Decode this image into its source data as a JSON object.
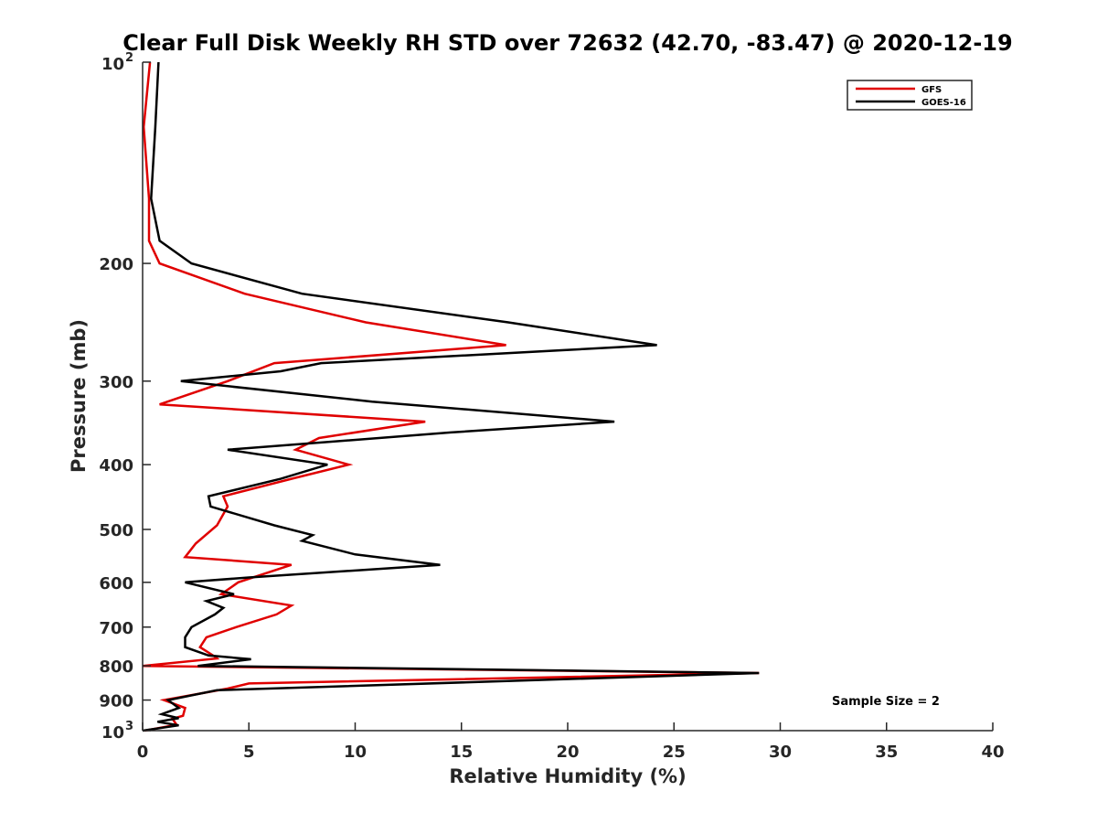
{
  "chart_data": {
    "type": "line",
    "title": "Clear Full Disk Weekly RH STD over 72632 (42.70, -83.47) @ 2020-12-19",
    "xlabel": "Relative Humidity (%)",
    "ylabel": "Pressure (mb)",
    "xlim": [
      0,
      40
    ],
    "ylim": [
      100,
      1000
    ],
    "yscale": "log",
    "y_reversed": true,
    "grid": false,
    "x_ticks": [
      0,
      5,
      10,
      15,
      20,
      25,
      30,
      35,
      40
    ],
    "x_tick_labels": [
      "0",
      "5",
      "10",
      "15",
      "20",
      "25",
      "30",
      "35",
      "40"
    ],
    "y_ticks": [
      100,
      200,
      300,
      400,
      500,
      600,
      700,
      800,
      900,
      1000
    ],
    "y_tick_labels": [
      {
        "base": "10",
        "exp": "2"
      },
      {
        "base": "200",
        "exp": ""
      },
      {
        "base": "300",
        "exp": ""
      },
      {
        "base": "400",
        "exp": ""
      },
      {
        "base": "500",
        "exp": ""
      },
      {
        "base": "600",
        "exp": ""
      },
      {
        "base": "700",
        "exp": ""
      },
      {
        "base": "800",
        "exp": ""
      },
      {
        "base": "900",
        "exp": ""
      },
      {
        "base": "10",
        "exp": "3"
      }
    ],
    "legend_position": "top-right",
    "annotation": "Sample Size = 2",
    "series": [
      {
        "name": "GFS",
        "color": "#e00000",
        "points": [
          [
            0.35,
            100
          ],
          [
            0.05,
            125
          ],
          [
            0.3,
            160
          ],
          [
            0.3,
            185
          ],
          [
            0.8,
            200
          ],
          [
            4.8,
            222
          ],
          [
            10.5,
            245
          ],
          [
            17.1,
            265
          ],
          [
            6.2,
            282
          ],
          [
            4.0,
            300
          ],
          [
            0.8,
            325
          ],
          [
            13.3,
            345
          ],
          [
            8.3,
            365
          ],
          [
            7.2,
            380
          ],
          [
            9.7,
            400
          ],
          [
            7.0,
            420
          ],
          [
            3.8,
            446
          ],
          [
            4.0,
            462
          ],
          [
            3.5,
            493
          ],
          [
            2.5,
            525
          ],
          [
            2.0,
            550
          ],
          [
            7.0,
            565
          ],
          [
            4.5,
            600
          ],
          [
            3.7,
            625
          ],
          [
            7.0,
            650
          ],
          [
            6.3,
            670
          ],
          [
            4.4,
            700
          ],
          [
            3.0,
            725
          ],
          [
            2.7,
            750
          ],
          [
            3.4,
            775
          ],
          [
            3.5,
            780
          ],
          [
            0.0,
            800
          ],
          [
            29.0,
            820
          ],
          [
            5.0,
            850
          ],
          [
            4.0,
            865
          ],
          [
            1.0,
            900
          ],
          [
            2.0,
            925
          ],
          [
            1.9,
            950
          ],
          [
            1.4,
            960
          ],
          [
            1.6,
            980
          ],
          [
            0.1,
            1000
          ]
        ]
      },
      {
        "name": "GOES-16",
        "color": "#000000",
        "points": [
          [
            0.75,
            100
          ],
          [
            0.6,
            125
          ],
          [
            0.4,
            160
          ],
          [
            0.8,
            185
          ],
          [
            2.3,
            200
          ],
          [
            7.5,
            222
          ],
          [
            17.2,
            245
          ],
          [
            24.2,
            265
          ],
          [
            8.4,
            282
          ],
          [
            6.5,
            290
          ],
          [
            1.8,
            300
          ],
          [
            10.8,
            322
          ],
          [
            22.2,
            345
          ],
          [
            14.5,
            358
          ],
          [
            4.0,
            380
          ],
          [
            8.7,
            400
          ],
          [
            6.5,
            420
          ],
          [
            3.1,
            446
          ],
          [
            3.2,
            462
          ],
          [
            6.2,
            493
          ],
          [
            8.0,
            510
          ],
          [
            7.5,
            520
          ],
          [
            10.0,
            545
          ],
          [
            14.0,
            565
          ],
          [
            5.0,
            590
          ],
          [
            2.0,
            600
          ],
          [
            4.3,
            625
          ],
          [
            3.0,
            640
          ],
          [
            3.8,
            655
          ],
          [
            3.4,
            670
          ],
          [
            2.3,
            700
          ],
          [
            2.0,
            725
          ],
          [
            2.0,
            750
          ],
          [
            3.1,
            772
          ],
          [
            5.1,
            782
          ],
          [
            2.6,
            800
          ],
          [
            29.0,
            820
          ],
          [
            3.5,
            870
          ],
          [
            1.2,
            900
          ],
          [
            1.7,
            925
          ],
          [
            0.9,
            945
          ],
          [
            1.7,
            958
          ],
          [
            0.7,
            970
          ],
          [
            1.7,
            982
          ],
          [
            0.0,
            1000
          ]
        ]
      }
    ]
  }
}
